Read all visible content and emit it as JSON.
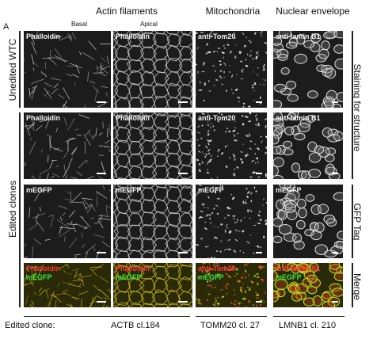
{
  "figure": {
    "panel_label": "A",
    "columns": {
      "actin": "Actin filaments",
      "actin_basal": "Basal",
      "actin_apical": "Apical",
      "mito": "Mitochondria",
      "nuclear": "Nuclear envelope"
    },
    "left_labels": {
      "unedited": "Unedited WTC",
      "edited": "Edited clones"
    },
    "right_labels": {
      "structure": "Staining for structure",
      "gfp": "GFP Tag",
      "merge": "Merge"
    },
    "rows": {
      "unedited": [
        "Phalloidin",
        "Phalloidin",
        "anti-Tom20",
        "anti-lamin B1"
      ],
      "edited_stain": [
        "Phalloidin",
        "Phalloidin",
        "anti-Tom20",
        "anti-lamin B1"
      ],
      "edited_gfp": [
        "mEGFP",
        "mEGFP",
        "mEGFP",
        "mEGFP"
      ],
      "merge_red": [
        "Phalloidin",
        "Phalloidin",
        "anti-Tom20",
        "anti-lamin B1"
      ],
      "merge_green": [
        "mEGFP",
        "mEGFP",
        "mEGFP",
        "mEGFP"
      ]
    },
    "bottom": {
      "prefix": "Edited clone:",
      "actin": "ACTB cl.184",
      "mito": "TOMM20 cl. 27",
      "nuclear": "LMNB1 cl. 210"
    },
    "colors": {
      "grayscale_bg": "#1c1c1c",
      "merge_red": "#ff3a3a",
      "merge_green": "#37e83f",
      "merge_yellow": "#d8c21a"
    }
  }
}
